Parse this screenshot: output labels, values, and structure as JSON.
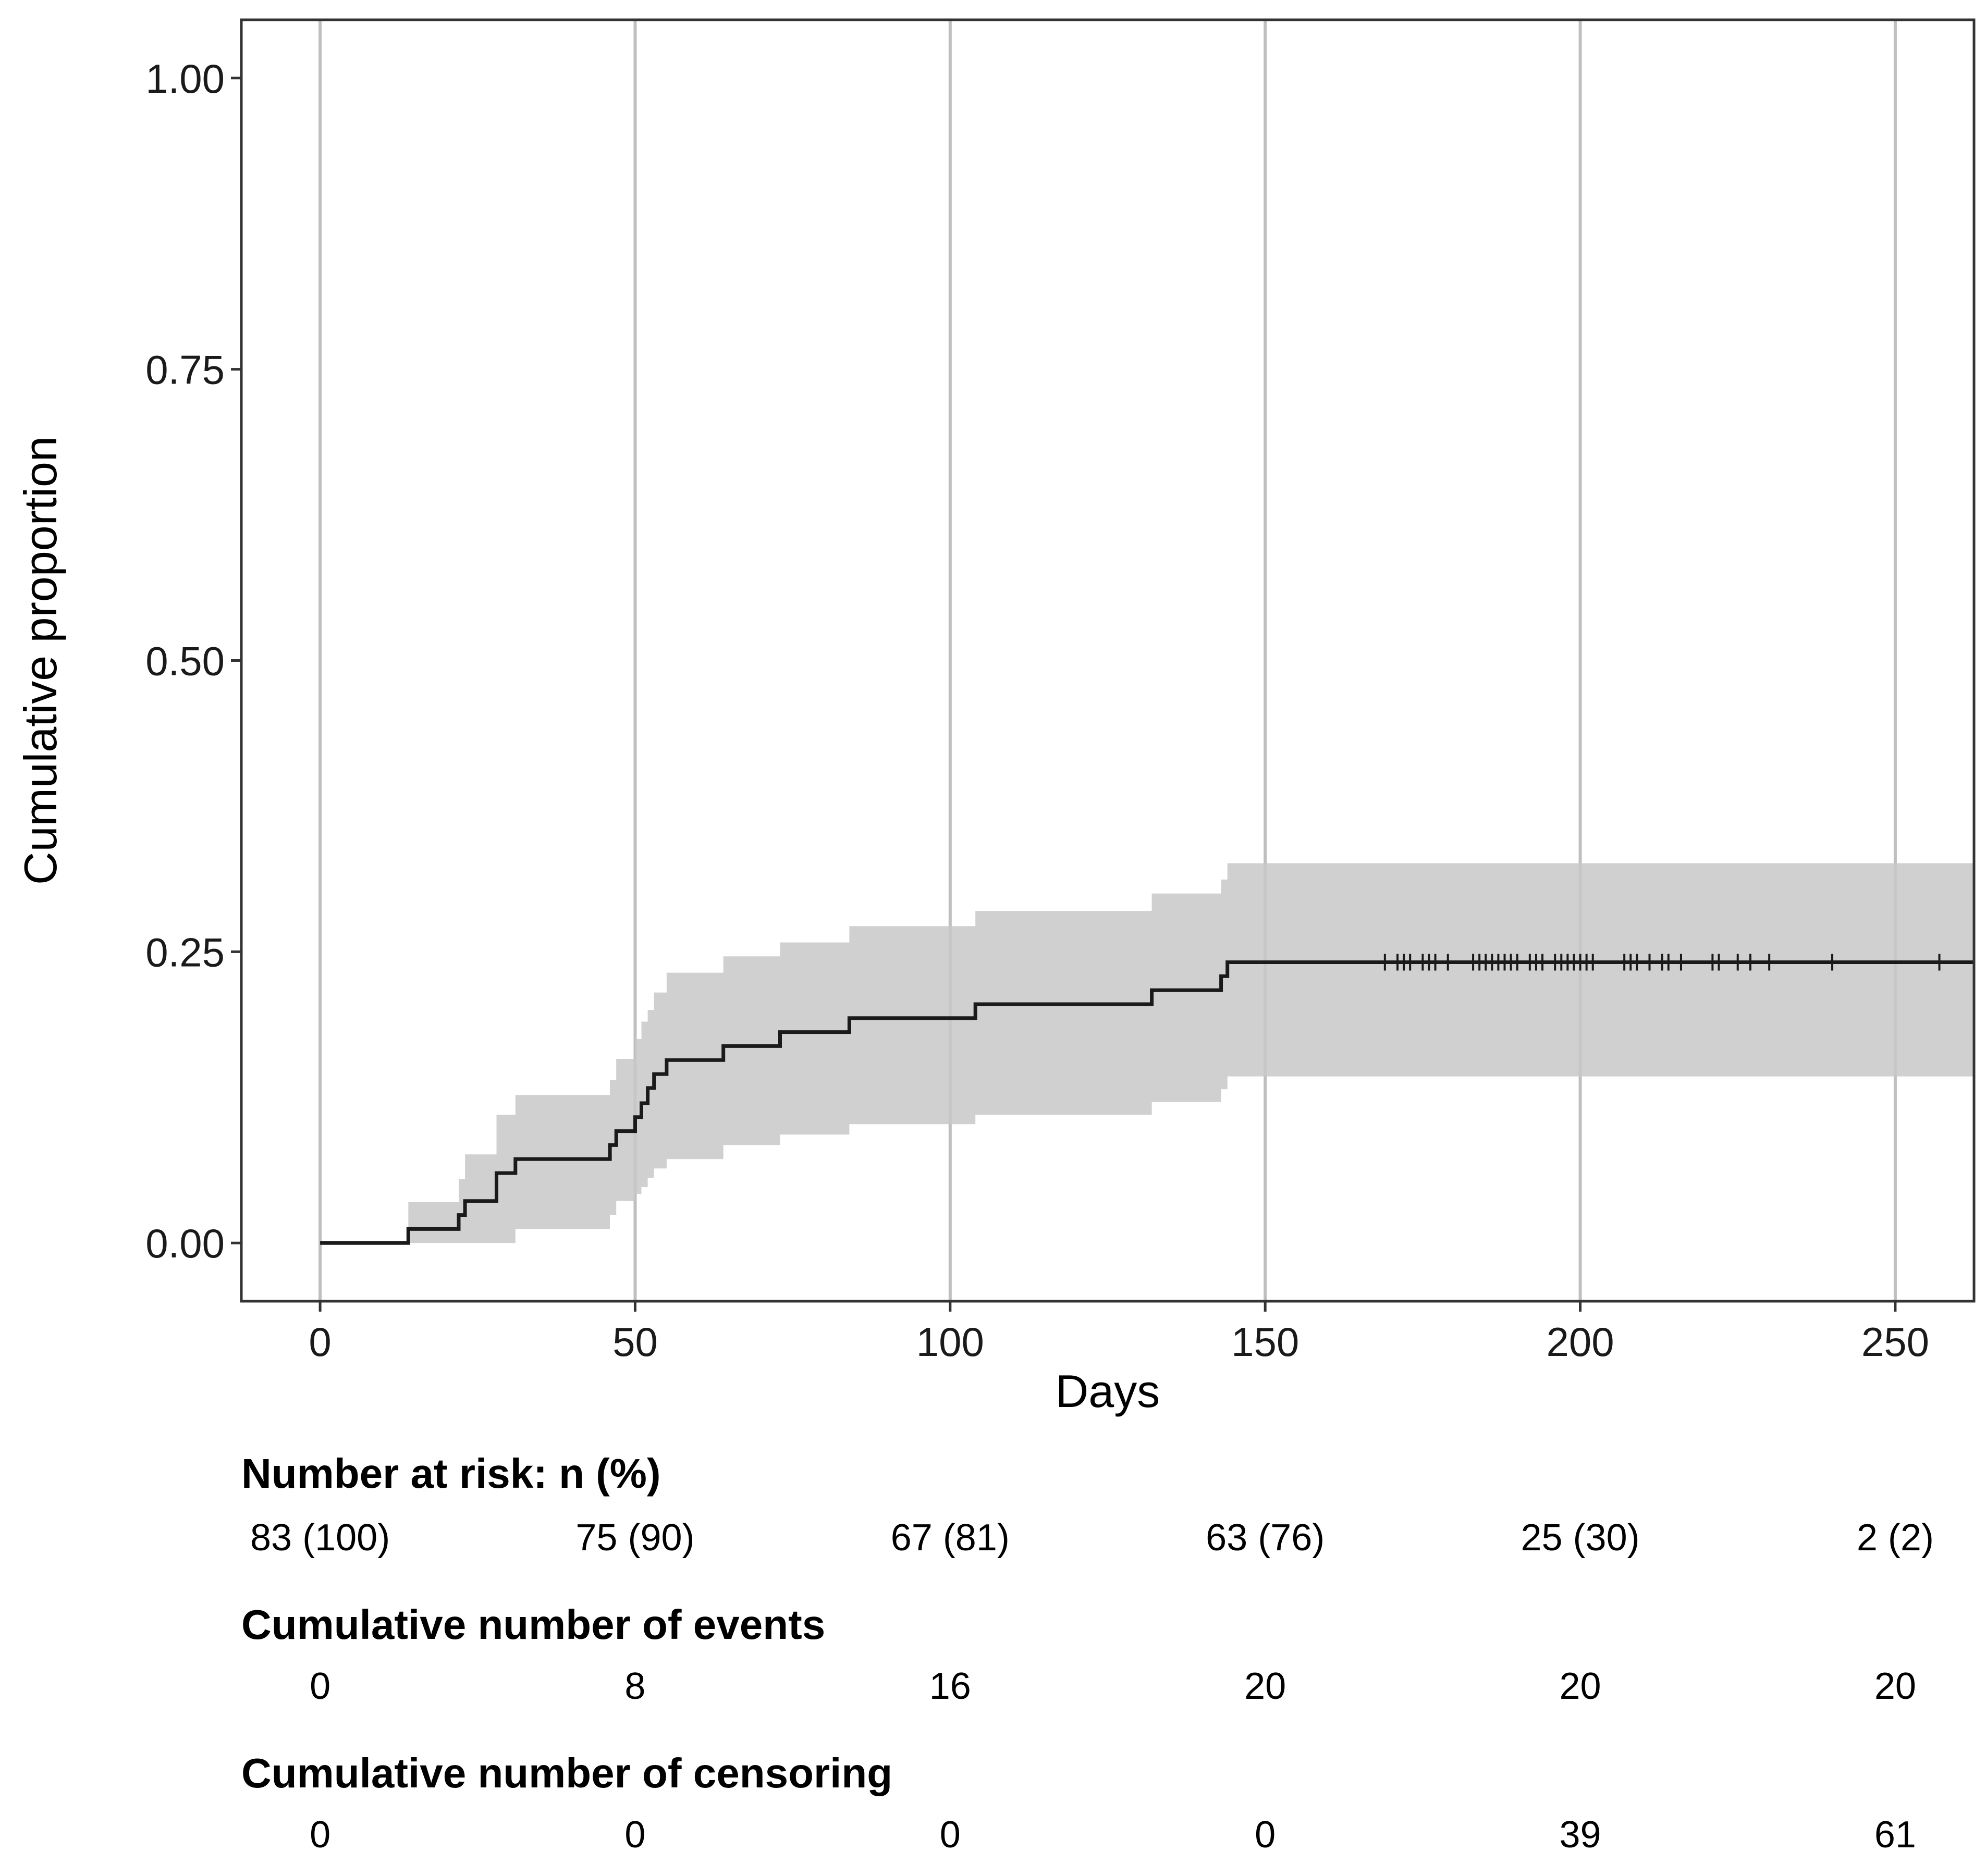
{
  "chart_data": {
    "type": "line",
    "title": "",
    "xlabel": "Days",
    "ylabel": "Cumulative proportion",
    "xlim": [
      -12.5,
      262.5
    ],
    "ylim": [
      -0.05,
      1.05
    ],
    "x_ticks": [
      0,
      50,
      100,
      150,
      200,
      250
    ],
    "x_tick_labels": [
      "0",
      "50",
      "100",
      "150",
      "200",
      "250"
    ],
    "y_ticks": [
      0,
      0.25,
      0.5,
      0.75,
      1.0
    ],
    "y_tick_labels": [
      "0.00",
      "0.25",
      "0.50",
      "0.75",
      "1.00"
    ],
    "grid": "vertical major",
    "colors": {
      "curve": "#1a1a1a",
      "band": "#c8c8c8",
      "grid": "#bfbfbf",
      "frame": "#333333"
    },
    "series": [
      {
        "type": "step",
        "x": [
          0,
          14,
          22,
          23,
          28,
          31,
          46,
          47,
          50,
          51,
          52,
          53,
          55,
          56,
          64,
          73,
          84,
          104,
          132,
          143,
          144,
          262.5
        ],
        "y": [
          0,
          0.012,
          0.024,
          0.036,
          0.06,
          0.072,
          0.084,
          0.096,
          0.108,
          0.12,
          0.133,
          0.145,
          0.157,
          0.157,
          0.169,
          0.181,
          0.193,
          0.205,
          0.217,
          0.229,
          0.241,
          0.241
        ],
        "lower": [
          0,
          0,
          0,
          0,
          0,
          0.012,
          0.024,
          0.036,
          0.042,
          0.048,
          0.056,
          0.064,
          0.072,
          0.072,
          0.084,
          0.093,
          0.102,
          0.11,
          0.121,
          0.132,
          0.143,
          0.143
        ],
        "upper": [
          0,
          0.035,
          0.055,
          0.076,
          0.11,
          0.127,
          0.14,
          0.158,
          0.175,
          0.19,
          0.2,
          0.215,
          0.232,
          0.232,
          0.246,
          0.258,
          0.272,
          0.285,
          0.3,
          0.312,
          0.326,
          0.326
        ]
      }
    ],
    "censor_times": [
      169,
      171,
      172,
      173,
      175,
      176,
      177,
      179,
      183,
      184,
      185,
      186,
      187,
      188,
      189,
      190,
      192,
      193,
      194,
      196,
      197,
      198,
      199,
      200,
      201,
      202,
      207,
      208,
      209,
      211,
      213,
      214,
      216,
      221,
      222,
      225,
      227,
      230,
      240,
      257
    ],
    "censor_level": 0.241,
    "risk_table": {
      "times": [
        0,
        50,
        100,
        150,
        200,
        250
      ],
      "sections": [
        {
          "title": "Number at risk: n (%)",
          "values": [
            "83 (100)",
            "75 (90)",
            "67 (81)",
            "63 (76)",
            "25 (30)",
            "2 (2)"
          ]
        },
        {
          "title": "Cumulative number of events",
          "values": [
            "0",
            "8",
            "16",
            "20",
            "20",
            "20"
          ]
        },
        {
          "title": "Cumulative number of censoring",
          "values": [
            "0",
            "0",
            "0",
            "0",
            "39",
            "61"
          ]
        }
      ]
    }
  }
}
